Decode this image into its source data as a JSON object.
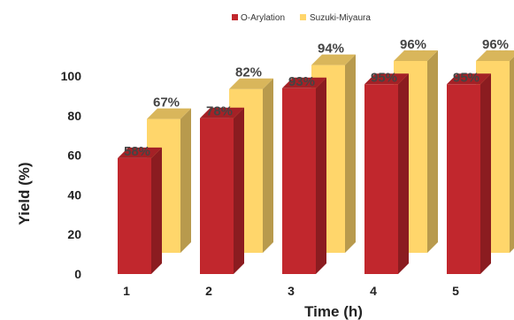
{
  "chart_data": {
    "type": "bar",
    "style": "3d-clustered",
    "xlabel": "Time (h)",
    "ylabel": "Yield (%)",
    "ylim": [
      0,
      100
    ],
    "yticks": [
      "0",
      "20",
      "40",
      "60",
      "80",
      "100"
    ],
    "categories": [
      "1",
      "2",
      "3",
      "4",
      "5"
    ],
    "legend_position": "top",
    "series": [
      {
        "name": "O-Arylation",
        "color": "#c1272d",
        "values": [
          58,
          78,
          93,
          95,
          95
        ],
        "labels": [
          "58%",
          "78%",
          "93%",
          "95%",
          "95%"
        ]
      },
      {
        "name": "Suzuki-Miyaura",
        "color": "#ffd66b",
        "values": [
          67,
          82,
          94,
          96,
          96
        ],
        "labels": [
          "67%",
          "82%",
          "94%",
          "96%",
          "96%"
        ]
      }
    ]
  }
}
